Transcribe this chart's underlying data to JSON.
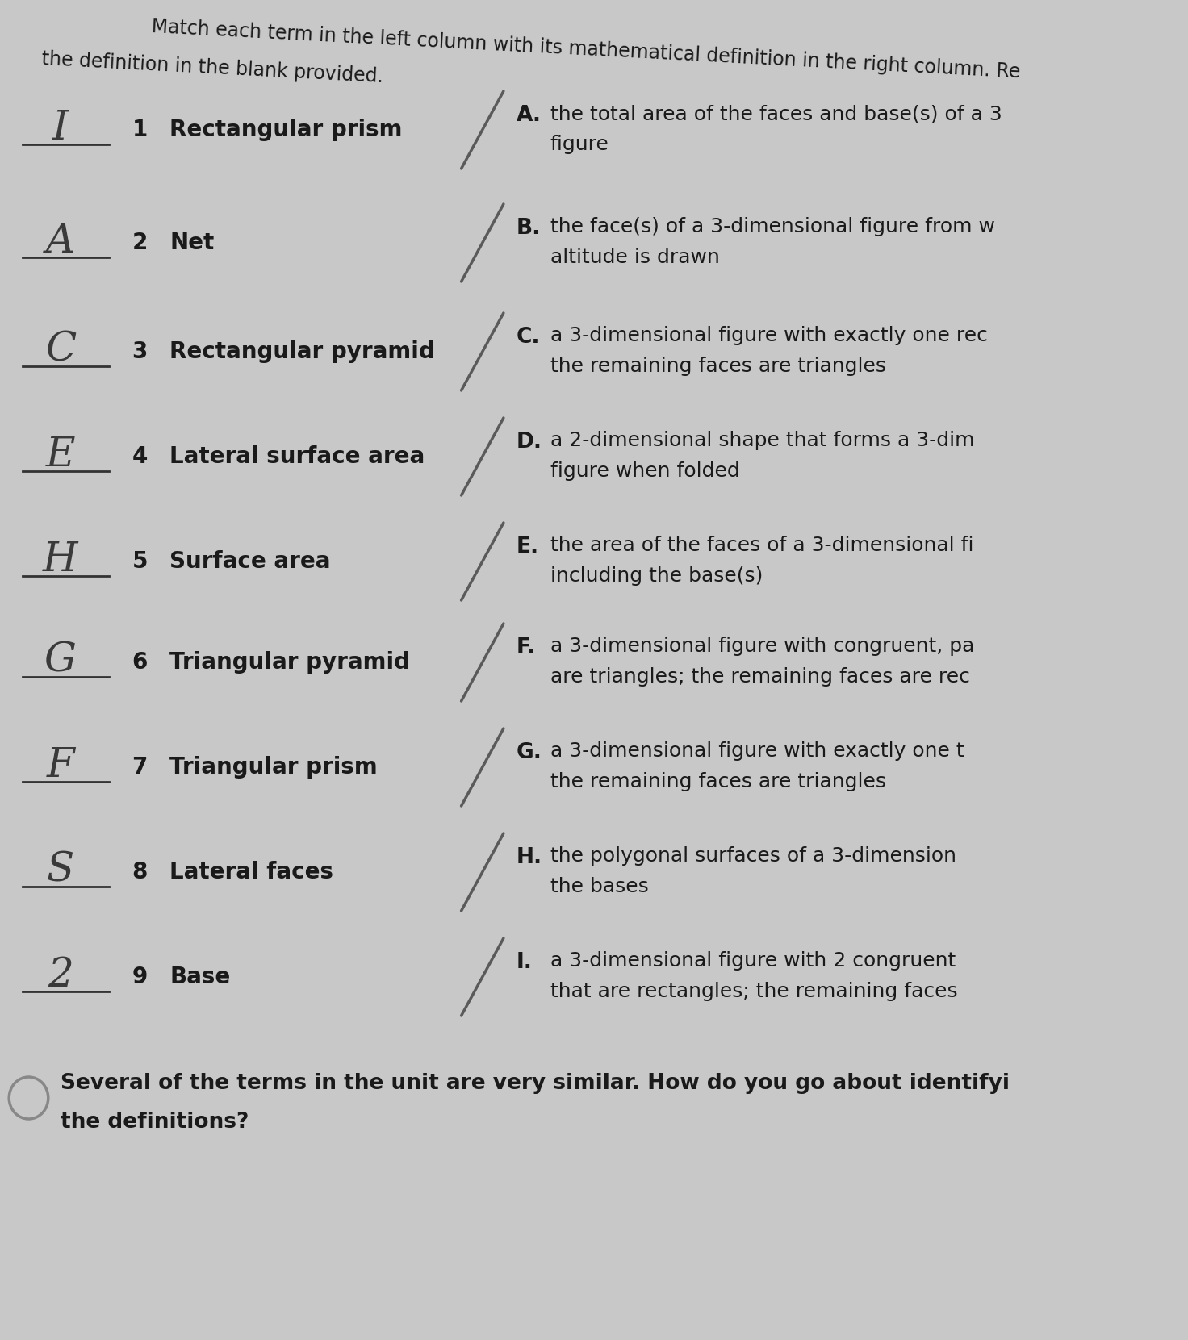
{
  "bg_color": "#c8c8c8",
  "title_top": "Match each term in the left column with its mathematical definition in the right column. Re",
  "title_bottom": "the definition in the blank provided.",
  "left_items": [
    {
      "num": "1",
      "term": "Rectangular prism",
      "answer": "I"
    },
    {
      "num": "2",
      "term": "Net",
      "answer": "A"
    },
    {
      "num": "3",
      "term": "Rectangular pyramid",
      "answer": "C"
    },
    {
      "num": "4",
      "term": "Lateral surface area",
      "answer": "E"
    },
    {
      "num": "5",
      "term": "Surface area",
      "answer": "H"
    },
    {
      "num": "6",
      "term": "Triangular pyramid",
      "answer": "G"
    },
    {
      "num": "7",
      "term": "Triangular prism",
      "answer": "F"
    },
    {
      "num": "8",
      "term": "Lateral faces",
      "answer": "S"
    },
    {
      "num": "9",
      "term": "Base",
      "answer": "2"
    }
  ],
  "right_items": [
    {
      "letter": "A.",
      "line1": "the total area of the faces and base(s) of a 3",
      "line2": "figure"
    },
    {
      "letter": "B.",
      "line1": "the face(s) of a 3-dimensional figure from w",
      "line2": "altitude is drawn"
    },
    {
      "letter": "C.",
      "line1": "a 3-dimensional figure with exactly one rec",
      "line2": "the remaining faces are triangles"
    },
    {
      "letter": "D.",
      "line1": "a 2-dimensional shape that forms a 3-dim",
      "line2": "figure when folded"
    },
    {
      "letter": "E.",
      "line1": "the area of the faces of a 3-dimensional fi",
      "line2": "including the base(s)"
    },
    {
      "letter": "F.",
      "line1": "a 3-dimensional figure with congruent, pa",
      "line2": "are triangles; the remaining faces are rec"
    },
    {
      "letter": "G.",
      "line1": "a 3-dimensional figure with exactly one t",
      "line2": "the remaining faces are triangles"
    },
    {
      "letter": "H.",
      "line1": "the polygonal surfaces of a 3-dimension",
      "line2": "the bases"
    },
    {
      "letter": "I.",
      "line1": "a 3-dimensional figure with 2 congruent",
      "line2": "that are rectangles; the remaining faces"
    }
  ],
  "footer_line1": "Several of the terms in the unit are very similar. How do you go about identifyi",
  "footer_line2": "the definitions?",
  "text_color": "#1a1a1a",
  "answer_color": "#3a3a3a",
  "slash_color": "#5a5a5a",
  "line_color": "#333333"
}
